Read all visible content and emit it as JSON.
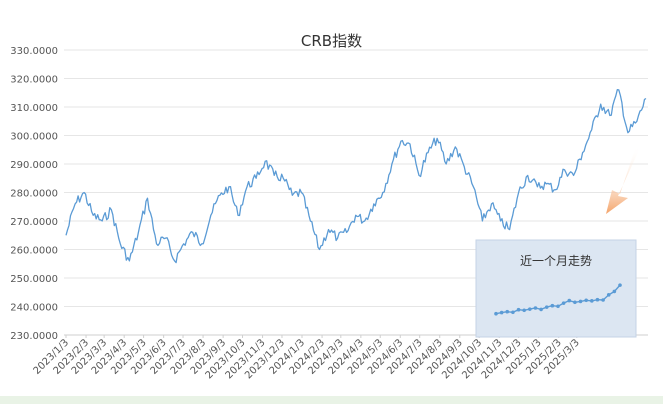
{
  "chart_data": {
    "type": "line",
    "title": "CRB指数",
    "ylim": [
      230,
      330
    ],
    "y_ticks": [
      "330.0000",
      "320.0000",
      "310.0000",
      "300.0000",
      "290.0000",
      "280.0000",
      "270.0000",
      "260.0000",
      "250.0000",
      "240.0000",
      "230.0000"
    ],
    "x_ticks": [
      "2023/1/3",
      "2023/2/3",
      "2023/3/3",
      "2023/4/3",
      "2023/5/3",
      "2023/6/3",
      "2023/7/3",
      "2023/8/3",
      "2023/9/3",
      "2023/10/3",
      "2023/11/3",
      "2023/12/3",
      "2024/1/3",
      "2024/2/3",
      "2024/3/3",
      "2024/4/3",
      "2024/5/3",
      "2024/6/3",
      "2024/7/3",
      "2024/8/3",
      "2024/9/3",
      "2024/10/3",
      "2024/11/3",
      "2024/12/3",
      "2025/1/3",
      "2025/2/3",
      "2025/3/3"
    ],
    "series": [
      {
        "points": [
          [
            "2023/1/3",
            265
          ],
          [
            "2023/1/17",
            276
          ],
          [
            "2023/1/31",
            280
          ],
          [
            "2023/2/14",
            272
          ],
          [
            "2023/2/28",
            270
          ],
          [
            "2023/3/14",
            274
          ],
          [
            "2023/3/28",
            262
          ],
          [
            "2023/4/11",
            256
          ],
          [
            "2023/4/25",
            266
          ],
          [
            "2023/5/9",
            278
          ],
          [
            "2023/5/23",
            262
          ],
          [
            "2023/6/6",
            264
          ],
          [
            "2023/6/20",
            256
          ],
          [
            "2023/7/4",
            262
          ],
          [
            "2023/7/18",
            266
          ],
          [
            "2023/8/1",
            262
          ],
          [
            "2023/8/15",
            272
          ],
          [
            "2023/8/29",
            279
          ],
          [
            "2023/9/12",
            282
          ],
          [
            "2023/9/26",
            272
          ],
          [
            "2023/10/10",
            282
          ],
          [
            "2023/10/24",
            285
          ],
          [
            "2023/11/7",
            291
          ],
          [
            "2023/11/21",
            286
          ],
          [
            "2023/12/5",
            285
          ],
          [
            "2023/12/19",
            279
          ],
          [
            "2024/1/2",
            280
          ],
          [
            "2024/1/16",
            270
          ],
          [
            "2024/1/30",
            260
          ],
          [
            "2024/2/13",
            267
          ],
          [
            "2024/2/27",
            264
          ],
          [
            "2024/3/12",
            266
          ],
          [
            "2024/3/26",
            272
          ],
          [
            "2024/4/9",
            270
          ],
          [
            "2024/4/23",
            276
          ],
          [
            "2024/5/7",
            280
          ],
          [
            "2024/5/21",
            290
          ],
          [
            "2024/6/4",
            298
          ],
          [
            "2024/6/18",
            297
          ],
          [
            "2024/7/2",
            286
          ],
          [
            "2024/7/16",
            294
          ],
          [
            "2024/7/30",
            299
          ],
          [
            "2024/8/13",
            290
          ],
          [
            "2024/8/27",
            296
          ],
          [
            "2024/9/10",
            289
          ],
          [
            "2024/9/24",
            282
          ],
          [
            "2024/10/8",
            270
          ],
          [
            "2024/10/22",
            276
          ],
          [
            "2024/11/5",
            270
          ],
          [
            "2024/11/19",
            267
          ],
          [
            "2024/12/3",
            280
          ],
          [
            "2024/12/17",
            286
          ],
          [
            "2025/1/1",
            282
          ],
          [
            "2025/1/15",
            283
          ],
          [
            "2025/1/29",
            281
          ],
          [
            "2025/2/12",
            288
          ],
          [
            "2025/2/26",
            286
          ],
          [
            "2025/3/12",
            294
          ],
          [
            "2025/3/26",
            302
          ],
          [
            "2025/4/9",
            311
          ],
          [
            "2025/4/23",
            307
          ],
          [
            "2025/5/7",
            316
          ],
          [
            "2025/5/21",
            301
          ],
          [
            "2025/6/4",
            305
          ],
          [
            "2025/6/18",
            313
          ]
        ]
      }
    ],
    "inset": {
      "title": "近一个月走势",
      "values": [
        238.2,
        238.6,
        238.9,
        238.7,
        239.6,
        239.4,
        239.8,
        240.2,
        239.7,
        240.5,
        241.0,
        240.8,
        241.9,
        242.8,
        242.2,
        242.5,
        242.9,
        242.7,
        243.1,
        243.0,
        244.8,
        246.0,
        248.2
      ]
    }
  }
}
